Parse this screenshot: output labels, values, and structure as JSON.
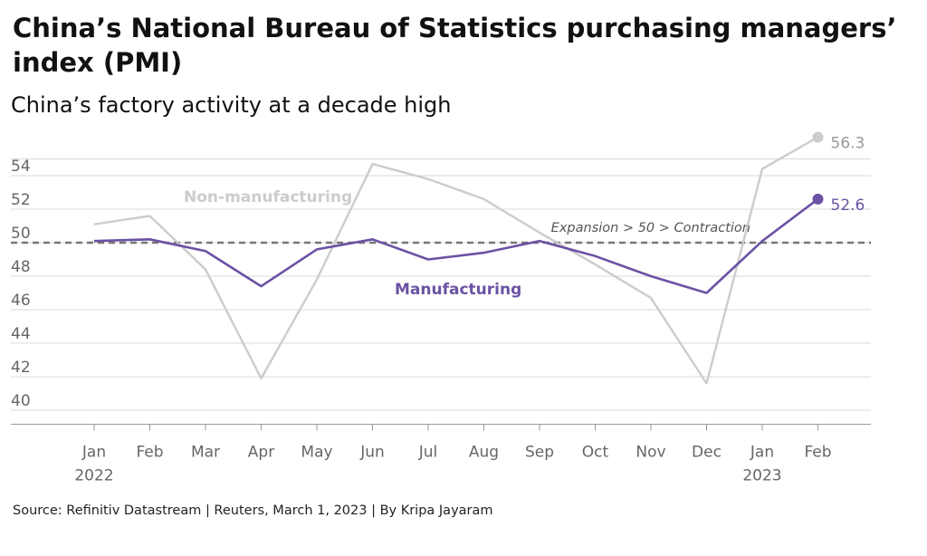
{
  "header": {
    "title": "China’s National Bureau of Statistics purchasing managers’ index (PMI)",
    "subtitle": "China’s factory activity at a decade high"
  },
  "footer": {
    "source": "Source: Refinitiv Datastream | Reuters, March 1, 2023 | By Kripa Jayaram"
  },
  "colors": {
    "manufacturing": "#6b52a3",
    "non_manufacturing": "#cccccc",
    "threshold": "#777777",
    "grid": "#d9d9d9",
    "axis": "#999999"
  },
  "chart_data": {
    "type": "line",
    "title": "China’s National Bureau of Statistics purchasing managers’ index (PMI)",
    "subtitle": "China’s factory activity at a decade high",
    "categories": [
      "Jan",
      "Feb",
      "Mar",
      "Apr",
      "May",
      "Jun",
      "Jul",
      "Aug",
      "Sep",
      "Oct",
      "Nov",
      "Dec",
      "Jan",
      "Feb"
    ],
    "category_sublabels": [
      "2022",
      "",
      "",
      "",
      "",
      "",
      "",
      "",
      "",
      "",
      "",
      "",
      "2023",
      ""
    ],
    "ylim": [
      39,
      56
    ],
    "yticks": [
      40,
      42,
      44,
      46,
      48,
      50,
      52,
      54
    ],
    "grid": true,
    "threshold": {
      "value": 50,
      "label": "Expansion > 50 > Contraction"
    },
    "series": [
      {
        "name": "Non-manufacturing",
        "values": [
          51.1,
          51.6,
          48.4,
          41.9,
          47.8,
          54.7,
          53.8,
          52.6,
          50.6,
          48.7,
          46.7,
          41.6,
          54.4,
          56.3
        ],
        "end_label": "56.3"
      },
      {
        "name": "Manufacturing",
        "values": [
          50.1,
          50.2,
          49.5,
          47.4,
          49.6,
          50.2,
          49.0,
          49.4,
          50.1,
          49.2,
          48.0,
          47.0,
          50.1,
          52.6
        ],
        "end_label": "52.6"
      }
    ]
  }
}
